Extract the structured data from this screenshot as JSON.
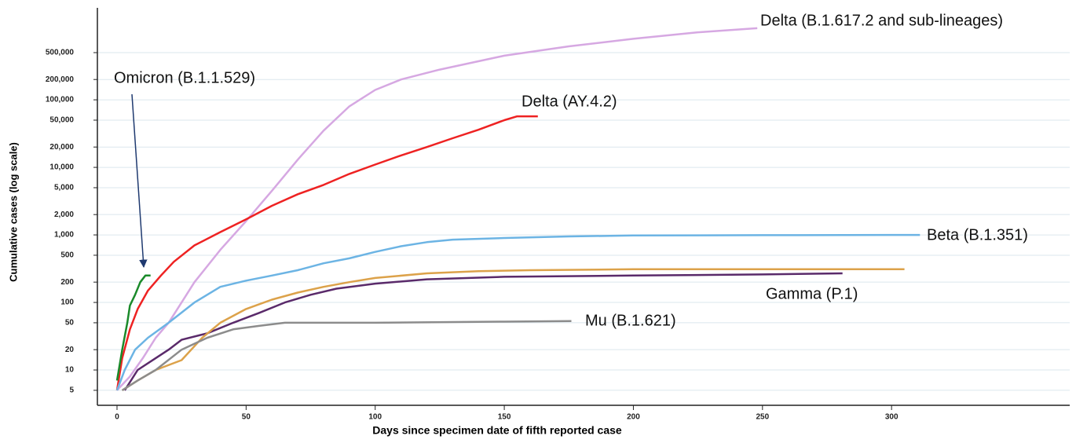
{
  "chart_data": {
    "type": "line",
    "log_scale_y": true,
    "grid": true,
    "x_label": "Days since specimen date of fifth reported case",
    "y_label": "Cumulative cases (log scale)",
    "xlim": [
      -7.6,
      369
    ],
    "xticks": [
      0,
      50,
      100,
      150,
      200,
      250,
      300
    ],
    "ylim": [
      3,
      2300000
    ],
    "yticks": [
      5,
      10,
      20,
      50,
      100,
      200,
      500,
      {
        "value": 1000,
        "label": "1,000"
      },
      {
        "value": 2000,
        "label": "2,000"
      },
      {
        "value": 5000,
        "label": "5,000"
      },
      {
        "value": 10000,
        "label": "10,000"
      },
      {
        "value": 20000,
        "label": "20,000"
      },
      {
        "value": 50000,
        "label": "50,000"
      },
      {
        "value": 100000,
        "label": "100,000"
      },
      {
        "value": 200000,
        "label": "200,000"
      },
      {
        "value": 500000,
        "label": "500,000"
      }
    ],
    "series": [
      {
        "name": "Delta (B.1.617.2 and sub-lineages)",
        "color": "#d6a8e2",
        "x": [
          0,
          5,
          10,
          15,
          20,
          25,
          30,
          40,
          50,
          60,
          70,
          80,
          90,
          100,
          110,
          125,
          150,
          175,
          200,
          225,
          248
        ],
        "values": [
          5,
          8,
          15,
          30,
          50,
          100,
          200,
          600,
          1600,
          4500,
          13000,
          35000,
          80000,
          140000,
          200000,
          280000,
          450000,
          620000,
          800000,
          1000000,
          1150000
        ]
      },
      {
        "name": "Delta (AY.4.2)",
        "color": "#ee2222",
        "x": [
          0,
          2,
          5,
          8,
          12,
          17,
          22,
          30,
          40,
          50,
          60,
          70,
          80,
          90,
          100,
          110,
          120,
          130,
          140,
          150,
          155,
          163
        ],
        "values": [
          5,
          15,
          40,
          80,
          150,
          250,
          400,
          700,
          1100,
          1700,
          2700,
          4000,
          5500,
          8000,
          11000,
          15000,
          20000,
          27000,
          36000,
          50000,
          57000,
          57000
        ]
      },
      {
        "name": "Beta (B.1.351)",
        "color": "#6cb4e4",
        "x": [
          0,
          3,
          7,
          12,
          20,
          30,
          40,
          50,
          60,
          70,
          80,
          90,
          100,
          110,
          120,
          130,
          150,
          175,
          200,
          250,
          300,
          311
        ],
        "values": [
          5,
          10,
          20,
          30,
          50,
          100,
          170,
          210,
          250,
          300,
          380,
          450,
          560,
          680,
          780,
          850,
          900,
          950,
          980,
          990,
          1000,
          1000
        ]
      },
      {
        "name": "Gamma (P.1)",
        "color": "#5a2a6a",
        "x": [
          3,
          8,
          15,
          20,
          25,
          35,
          45,
          55,
          65,
          75,
          85,
          100,
          120,
          150,
          200,
          250,
          281
        ],
        "values": [
          5,
          10,
          15,
          20,
          28,
          35,
          50,
          70,
          100,
          130,
          160,
          190,
          220,
          240,
          250,
          260,
          270
        ]
      },
      {
        "color": "#dca24a",
        "x": [
          2,
          8,
          15,
          25,
          33,
          40,
          50,
          60,
          70,
          80,
          90,
          100,
          120,
          140,
          160,
          200,
          250,
          305
        ],
        "values": [
          5,
          7,
          10,
          14,
          30,
          50,
          80,
          110,
          140,
          170,
          200,
          230,
          270,
          290,
          300,
          310,
          310,
          310
        ]
      },
      {
        "name": "Mu (B.1.621)",
        "color": "#8c8c8c",
        "x": [
          2,
          8,
          15,
          25,
          35,
          45,
          55,
          65,
          100,
          150,
          176
        ],
        "values": [
          5,
          7,
          10,
          20,
          30,
          40,
          45,
          50,
          50,
          52,
          53
        ]
      },
      {
        "name": "Omicron (B.1.1.529)",
        "color": "#1a8a2a",
        "x": [
          0,
          2,
          4,
          5,
          7,
          9,
          11,
          13
        ],
        "values": [
          7,
          20,
          50,
          90,
          130,
          200,
          250,
          250
        ]
      }
    ]
  }
}
